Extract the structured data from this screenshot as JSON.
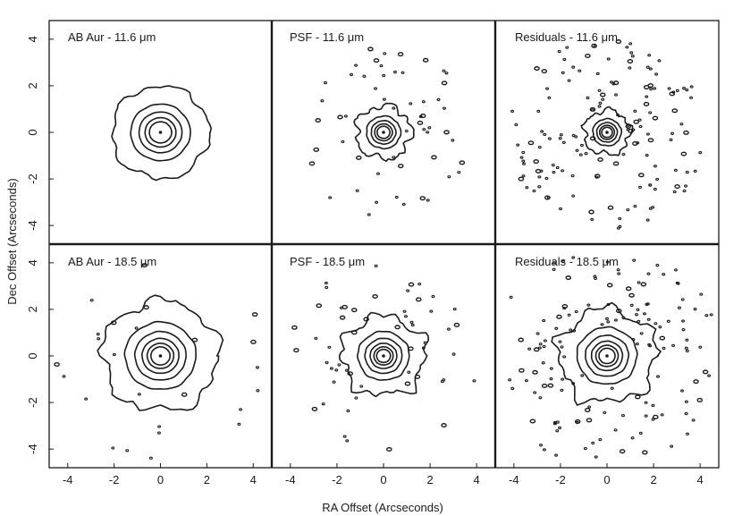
{
  "figure": {
    "xlabel": "RA Offset (Arcseconds)",
    "ylabel": "Dec Offset (Arcseconds)",
    "x_ticks": [
      "-4",
      "-2",
      "0",
      "2",
      "4"
    ],
    "y_ticks": [
      "4",
      "2",
      "0",
      "-2",
      "-4"
    ],
    "axis_range": [
      -4.8,
      4.8
    ]
  },
  "chart_data": [
    {
      "type": "contour",
      "title": "AB Aur - 11.6 μm",
      "levels": 5,
      "outer_radius_arcsec": 2.1,
      "noise": "none"
    },
    {
      "type": "contour",
      "title": "PSF - 11.6 μm",
      "levels": 5,
      "outer_radius_arcsec": 1.2,
      "noise": "moderate"
    },
    {
      "type": "contour",
      "title": "Residuals - 11.6 μm",
      "levels": 5,
      "outer_radius_arcsec": 1.0,
      "noise": "heavy"
    },
    {
      "type": "contour",
      "title": "AB Aur - 18.5 μm",
      "levels": 6,
      "outer_radius_arcsec": 2.5,
      "noise": "light"
    },
    {
      "type": "contour",
      "title": "PSF - 18.5 μm",
      "levels": 6,
      "outer_radius_arcsec": 1.8,
      "noise": "moderate"
    },
    {
      "type": "contour",
      "title": "Residuals - 18.5 μm",
      "levels": 6,
      "outer_radius_arcsec": 2.1,
      "noise": "heavy"
    }
  ]
}
